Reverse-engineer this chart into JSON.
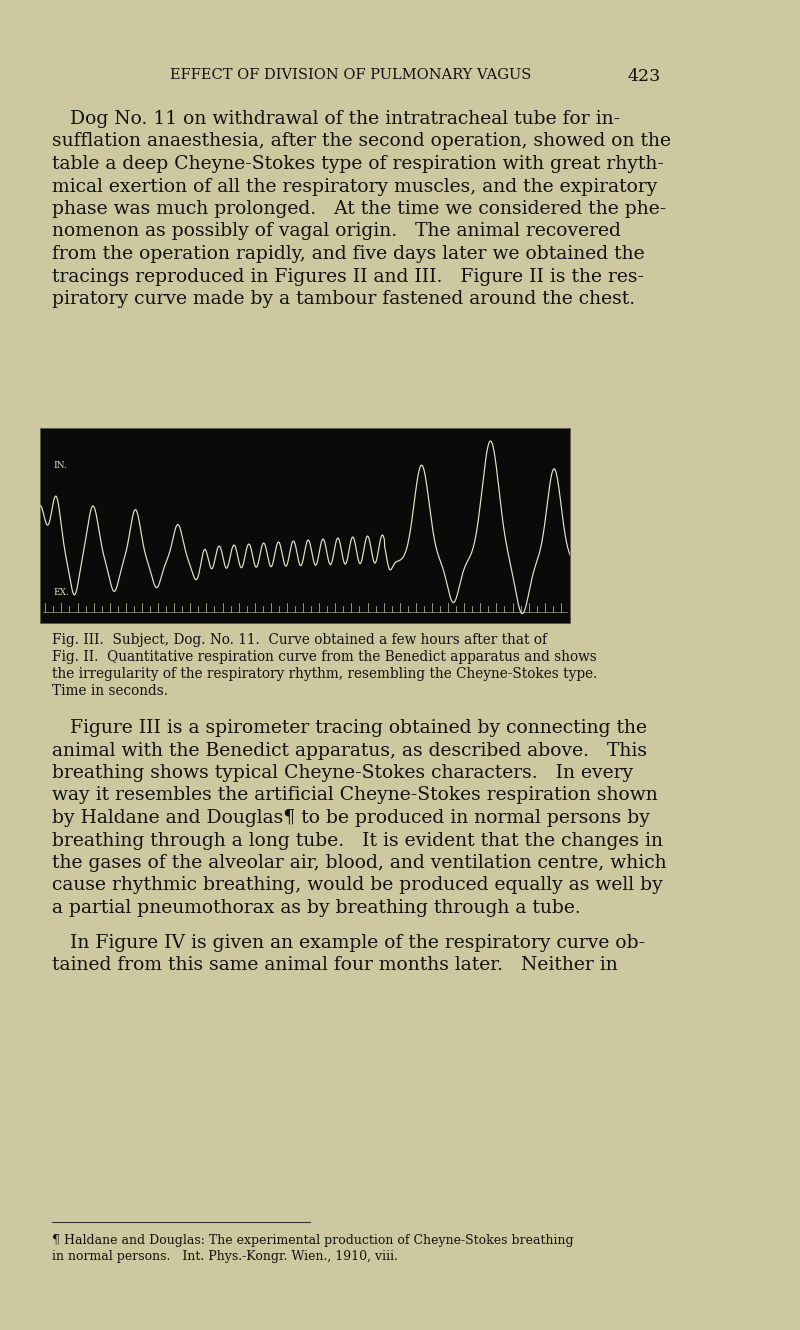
{
  "page_bg_color": "#cec8a0",
  "header_text": "EFFECT OF DIVISION OF PULMONARY VAGUS",
  "header_page_num": "423",
  "chart_bg_color": "#0a0a0a",
  "chart_line_color": "#e8e4c8",
  "label_IN": "IN.",
  "label_EX": "EX.",
  "caption_line1": "Fig. III.  Subject, Dog. No. 11.  Curve obtained a few hours after that of",
  "caption_line2": "Fig. II.  Quantitative respiration curve from the Benedict apparatus and shows",
  "caption_line3": "the irregularity of the respiratory rhythm, resembling the Cheyne-Stokes type.",
  "caption_line4": "Time in seconds.",
  "body1_lines": [
    "   Dog No. 11 on withdrawal of the intratracheal tube for in-",
    "sufflation anaesthesia, after the second operation, showed on the",
    "table a deep Cheyne-Stokes type of respiration with great rhyth-",
    "mical exertion of all the respiratory muscles, and the expiratory",
    "phase was much prolonged.   At the time we considered the phe-",
    "nomenon as possibly of vagal origin.   The animal recovered",
    "from the operation rapidly, and five days later we obtained the",
    "tracings reproduced in Figures II and III.   Figure II is the res-",
    "piratory curve made by a tambour fastened around the chest."
  ],
  "body2_lines": [
    "   Figure III is a spirometer tracing obtained by connecting the",
    "animal with the Benedict apparatus, as described above.   This",
    "breathing shows typical Cheyne-Stokes characters.   In every",
    "way it resembles the artificial Cheyne-Stokes respiration shown",
    "by Haldane and Douglas¶ to be produced in normal persons by",
    "breathing through a long tube.   It is evident that the changes in",
    "the gases of the alveolar air, blood, and ventilation centre, which",
    "cause rhythmic breathing, would be produced equally as well by",
    "a partial pneumothorax as by breathing through a tube."
  ],
  "body3_lines": [
    "   In Figure IV is given an example of the respiratory curve ob-",
    "tained from this same animal four months later.   Neither in"
  ],
  "footnote_lines": [
    "¶ Haldane and Douglas: The experimental production of Cheyne-Stokes breathing",
    "in normal persons.   Int. Phys.-Kongr. Wien., 1910, viii."
  ],
  "body_fontsize": 13.5,
  "header_fontsize": 10.5,
  "caption_fontsize": 9.8,
  "footnote_fontsize": 9.0
}
